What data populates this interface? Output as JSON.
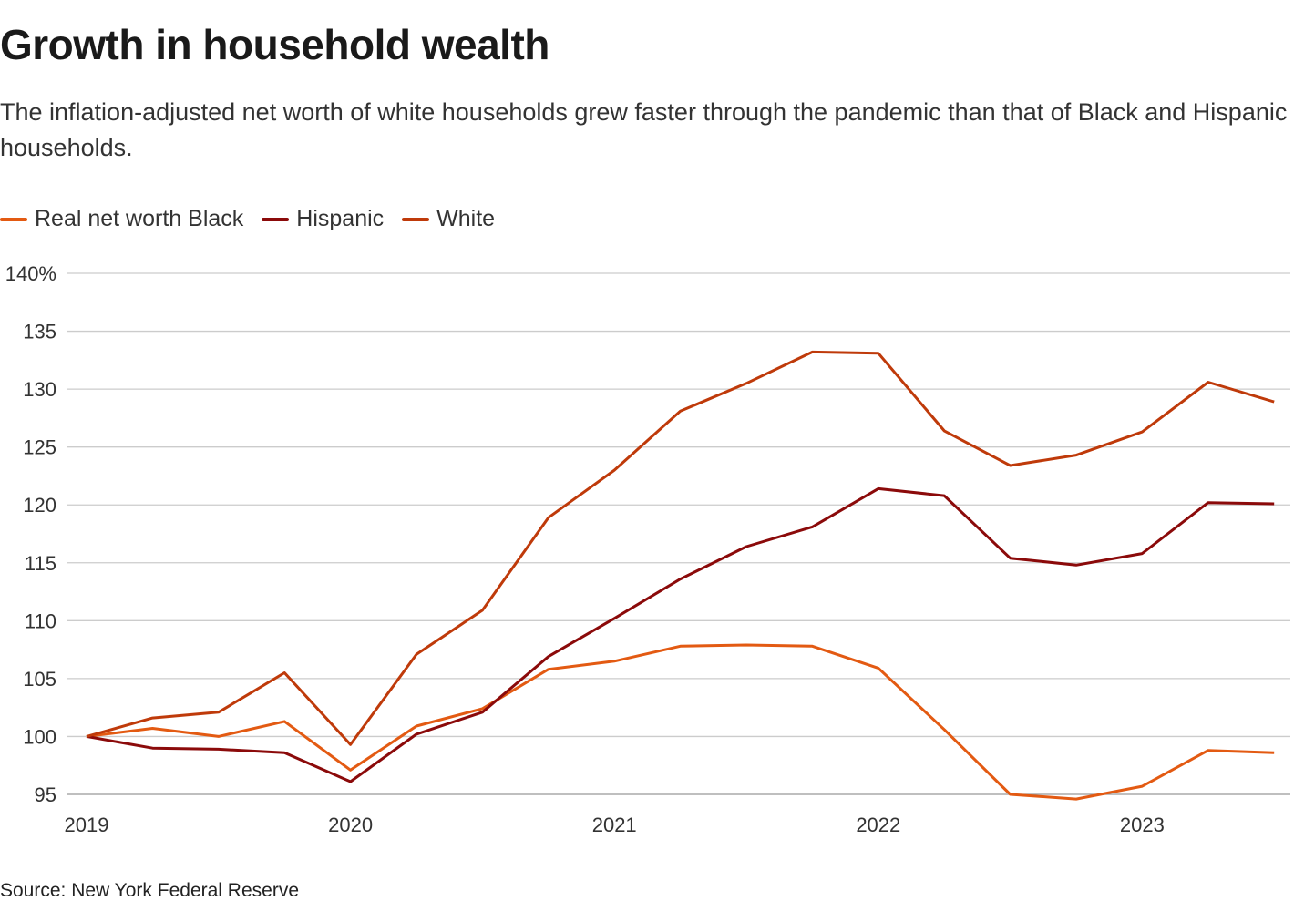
{
  "title": "Growth in household wealth",
  "subtitle": "The inflation-adjusted net worth of white households grew faster through the pandemic than that of Black and Hispanic households.",
  "source": "Source: New York Federal Reserve",
  "chart_data": {
    "type": "line",
    "title": "Growth in household wealth",
    "xlabel": "",
    "ylabel": "",
    "x": [
      "2019 Q1",
      "2019 Q2",
      "2019 Q3",
      "2019 Q4",
      "2020 Q1",
      "2020 Q2",
      "2020 Q3",
      "2020 Q4",
      "2021 Q1",
      "2021 Q2",
      "2021 Q3",
      "2021 Q4",
      "2022 Q1",
      "2022 Q2",
      "2022 Q3",
      "2022 Q4",
      "2023 Q1",
      "2023 Q2",
      "2023 Q3"
    ],
    "x_tick_labels": [
      "2019",
      "2020",
      "2021",
      "2022",
      "2023"
    ],
    "y_tick_labels": [
      "140%",
      "135",
      "130",
      "125",
      "120",
      "115",
      "110",
      "105",
      "100",
      "95"
    ],
    "y_ticks": [
      140,
      135,
      130,
      125,
      120,
      115,
      110,
      105,
      100,
      95
    ],
    "ylim": [
      95,
      140
    ],
    "grid": true,
    "legend_placement": "top-left",
    "series": [
      {
        "name": "Real net worth Black",
        "color": "#e35a12",
        "values": [
          100,
          100.7,
          100,
          101.3,
          97.1,
          100.9,
          102.4,
          105.8,
          106.5,
          107.8,
          107.9,
          107.8,
          105.9,
          100.6,
          95.0,
          94.6,
          95.7,
          98.8,
          98.6
        ]
      },
      {
        "name": "Hispanic",
        "color": "#8b0a0a",
        "values": [
          100,
          99.0,
          98.9,
          98.6,
          96.1,
          100.2,
          102.1,
          106.9,
          110.2,
          113.6,
          116.4,
          118.1,
          121.4,
          120.8,
          115.4,
          114.8,
          115.8,
          120.2,
          120.1
        ]
      },
      {
        "name": "White",
        "color": "#bf3a0a",
        "values": [
          100,
          101.6,
          102.1,
          105.5,
          99.3,
          107.1,
          110.9,
          118.9,
          123.0,
          128.1,
          130.5,
          133.2,
          133.1,
          126.4,
          123.4,
          124.3,
          126.3,
          130.6,
          128.9
        ]
      }
    ]
  }
}
